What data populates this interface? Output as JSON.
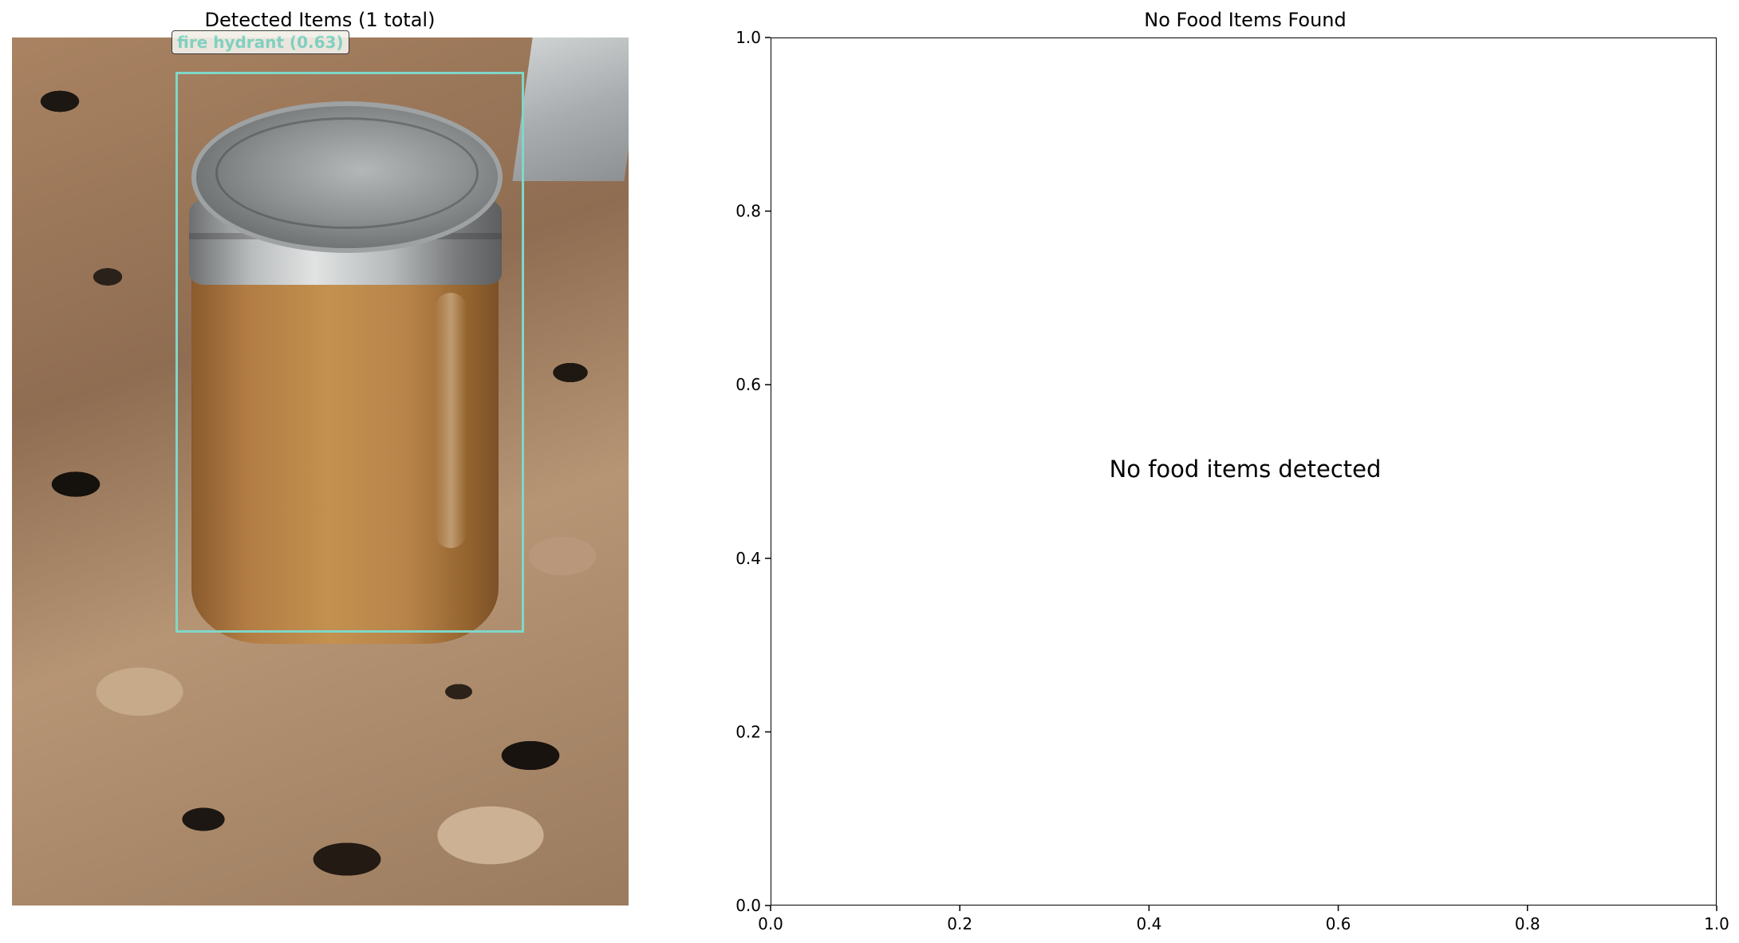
{
  "left_panel": {
    "title": "Detected Items (1 total)",
    "detection": {
      "label": "fire hydrant (0.63)",
      "color": "#7fd7c8"
    }
  },
  "right_panel": {
    "title": "No Food Items Found",
    "message": "No food items detected",
    "x_ticks": [
      "0.0",
      "0.2",
      "0.4",
      "0.6",
      "0.8",
      "1.0"
    ],
    "y_ticks": [
      "0.0",
      "0.2",
      "0.4",
      "0.6",
      "0.8",
      "1.0"
    ],
    "xlim": [
      0,
      1
    ],
    "ylim": [
      0,
      1
    ]
  }
}
